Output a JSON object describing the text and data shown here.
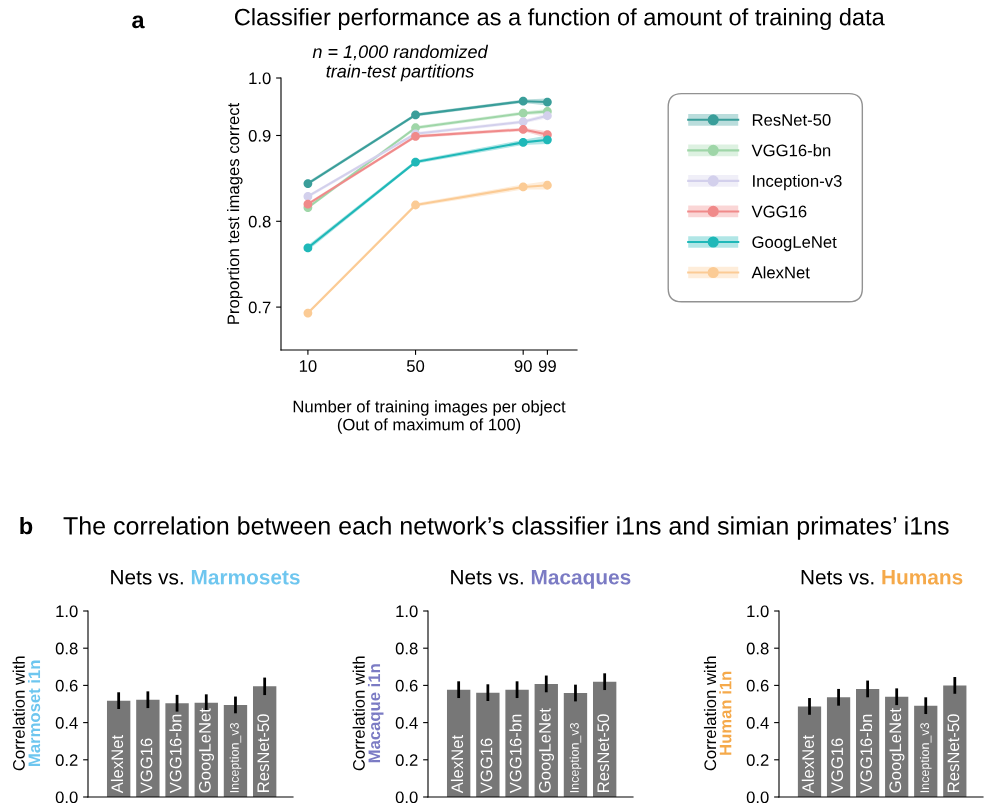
{
  "chart_data": [
    {
      "type": "line",
      "title": "Classifier performance as a function of amount of training data",
      "xlabel": "Number of training images per object\n(Out of maximum of 100)",
      "ylabel": "Proportion test images correct",
      "annotations": [
        "a",
        "n = 1,000 randomized\ntrain-test partitions"
      ],
      "x": [
        10,
        50,
        90,
        99
      ],
      "xlim": [
        0,
        110
      ],
      "xticks": [
        10,
        50,
        90,
        99
      ],
      "ylim": [
        0.65,
        0.967
      ],
      "yticks": [
        0.7,
        0.8,
        0.9,
        {
          "value": 0.967,
          "label": "1.0"
        }
      ],
      "marker": "circle",
      "legend": "right",
      "grid": false,
      "series": [
        {
          "name": "ResNet-50",
          "color": "#3a9e9a",
          "values": [
            0.844,
            0.924,
            0.94,
            0.939
          ],
          "lower": [
            0.842,
            0.922,
            0.938,
            0.935
          ],
          "upper": [
            0.846,
            0.926,
            0.942,
            0.943
          ]
        },
        {
          "name": "VGG16-bn",
          "color": "#9fd6a8",
          "values": [
            0.816,
            0.909,
            0.926,
            0.928
          ],
          "lower": [
            0.814,
            0.907,
            0.924,
            0.925
          ],
          "upper": [
            0.818,
            0.911,
            0.928,
            0.931
          ]
        },
        {
          "name": "Inception-v3",
          "color": "#d3d0ec",
          "values": [
            0.829,
            0.902,
            0.916,
            0.923
          ],
          "lower": [
            0.827,
            0.9,
            0.914,
            0.92
          ],
          "upper": [
            0.831,
            0.904,
            0.918,
            0.926
          ]
        },
        {
          "name": "VGG16",
          "color": "#f08a8a",
          "values": [
            0.82,
            0.899,
            0.907,
            0.901
          ],
          "lower": [
            0.818,
            0.897,
            0.905,
            0.897
          ],
          "upper": [
            0.822,
            0.901,
            0.909,
            0.905
          ]
        },
        {
          "name": "GoogLeNet",
          "color": "#1fb8b8",
          "values": [
            0.769,
            0.869,
            0.892,
            0.895
          ],
          "lower": [
            0.766,
            0.867,
            0.889,
            0.89
          ],
          "upper": [
            0.772,
            0.871,
            0.895,
            0.9
          ]
        },
        {
          "name": "AlexNet",
          "color": "#fbcb95",
          "values": [
            0.693,
            0.819,
            0.84,
            0.842
          ],
          "lower": [
            0.691,
            0.817,
            0.837,
            0.837
          ],
          "upper": [
            0.695,
            0.821,
            0.843,
            0.847
          ]
        }
      ]
    },
    {
      "type": "bar",
      "title": "Nets vs. Marmosets",
      "ylabel": "Correlation with\nMarmoset i1n",
      "annotations": [
        "b",
        "The correlation between each network’s classifier i1ns and simian primates’ i1ns"
      ],
      "categories": [
        "AlexNet",
        "VGG16",
        "VGG16-bn",
        "GoogLeNet",
        "Inception_v3",
        "ResNet-50"
      ],
      "values": [
        0.518,
        0.523,
        0.504,
        0.507,
        0.495,
        0.595
      ],
      "errors": [
        0.045,
        0.045,
        0.045,
        0.045,
        0.045,
        0.047
      ],
      "color": "#777777",
      "ylim": [
        0,
        1.0
      ],
      "yticks": [
        {
          "value": 0,
          "label": "0.0"
        },
        0.2,
        0.4,
        0.6,
        0.8,
        {
          "value": 1,
          "label": "1.0"
        }
      ]
    },
    {
      "type": "bar",
      "title": "Nets vs. Macaques",
      "ylabel": "Correlation with\nMacaque i1n",
      "categories": [
        "AlexNet",
        "VGG16",
        "VGG16-bn",
        "GoogLeNet",
        "Inception_v3",
        "ResNet-50"
      ],
      "values": [
        0.577,
        0.561,
        0.577,
        0.608,
        0.559,
        0.62
      ],
      "errors": [
        0.045,
        0.045,
        0.045,
        0.045,
        0.045,
        0.045
      ],
      "color": "#777777",
      "ylim": [
        0,
        1.0
      ],
      "yticks": [
        {
          "value": 0,
          "label": "0.0"
        },
        0.2,
        0.4,
        0.6,
        0.8,
        {
          "value": 1,
          "label": "1.0"
        }
      ]
    },
    {
      "type": "bar",
      "title": "Nets vs. Humans",
      "ylabel": "Correlation with\nHuman i1n",
      "categories": [
        "AlexNet",
        "VGG16",
        "VGG16-bn",
        "GoogLeNet",
        "Inception_v3",
        "ResNet-50"
      ],
      "values": [
        0.487,
        0.536,
        0.581,
        0.539,
        0.491,
        0.6
      ],
      "errors": [
        0.045,
        0.045,
        0.045,
        0.045,
        0.045,
        0.045
      ],
      "color": "#777777",
      "ylim": [
        0,
        1.0
      ],
      "yticks": [
        {
          "value": 0,
          "label": "0.0"
        },
        0.2,
        0.4,
        0.6,
        0.8,
        {
          "value": 1,
          "label": "1.0"
        }
      ]
    }
  ]
}
